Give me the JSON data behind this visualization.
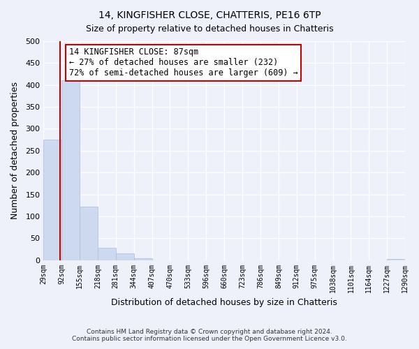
{
  "title": "14, KINGFISHER CLOSE, CHATTERIS, PE16 6TP",
  "subtitle": "Size of property relative to detached houses in Chatteris",
  "xlabel": "Distribution of detached houses by size in Chatteris",
  "ylabel": "Number of detached properties",
  "bar_edges": [
    29,
    92,
    155,
    218,
    281,
    344,
    407,
    470,
    533,
    596,
    660,
    723,
    786,
    849,
    912,
    975,
    1038,
    1101,
    1164,
    1227,
    1290
  ],
  "bar_heights": [
    275,
    410,
    122,
    28,
    15,
    5,
    0,
    0,
    0,
    0,
    0,
    0,
    0,
    0,
    0,
    0,
    0,
    0,
    0,
    2
  ],
  "bar_color": "#ccd9ee",
  "bar_edge_color": "#aabbdd",
  "property_line_x": 87,
  "property_line_color": "#cc0000",
  "annotation_title": "14 KINGFISHER CLOSE: 87sqm",
  "annotation_line1": "← 27% of detached houses are smaller (232)",
  "annotation_line2": "72% of semi-detached houses are larger (609) →",
  "annotation_box_color": "#ffffff",
  "annotation_box_edge": "#cc0000",
  "ylim": [
    0,
    500
  ],
  "yticks": [
    0,
    50,
    100,
    150,
    200,
    250,
    300,
    350,
    400,
    450,
    500
  ],
  "tick_labels": [
    "29sqm",
    "92sqm",
    "155sqm",
    "218sqm",
    "281sqm",
    "344sqm",
    "407sqm",
    "470sqm",
    "533sqm",
    "596sqm",
    "660sqm",
    "723sqm",
    "786sqm",
    "849sqm",
    "912sqm",
    "975sqm",
    "1038sqm",
    "1101sqm",
    "1164sqm",
    "1227sqm",
    "1290sqm"
  ],
  "footer_line1": "Contains HM Land Registry data © Crown copyright and database right 2024.",
  "footer_line2": "Contains public sector information licensed under the Open Government Licence v3.0.",
  "background_color": "#eef1fa",
  "plot_background_color": "#eef1fa",
  "grid_color": "#ffffff",
  "title_fontsize": 10,
  "subtitle_fontsize": 9
}
